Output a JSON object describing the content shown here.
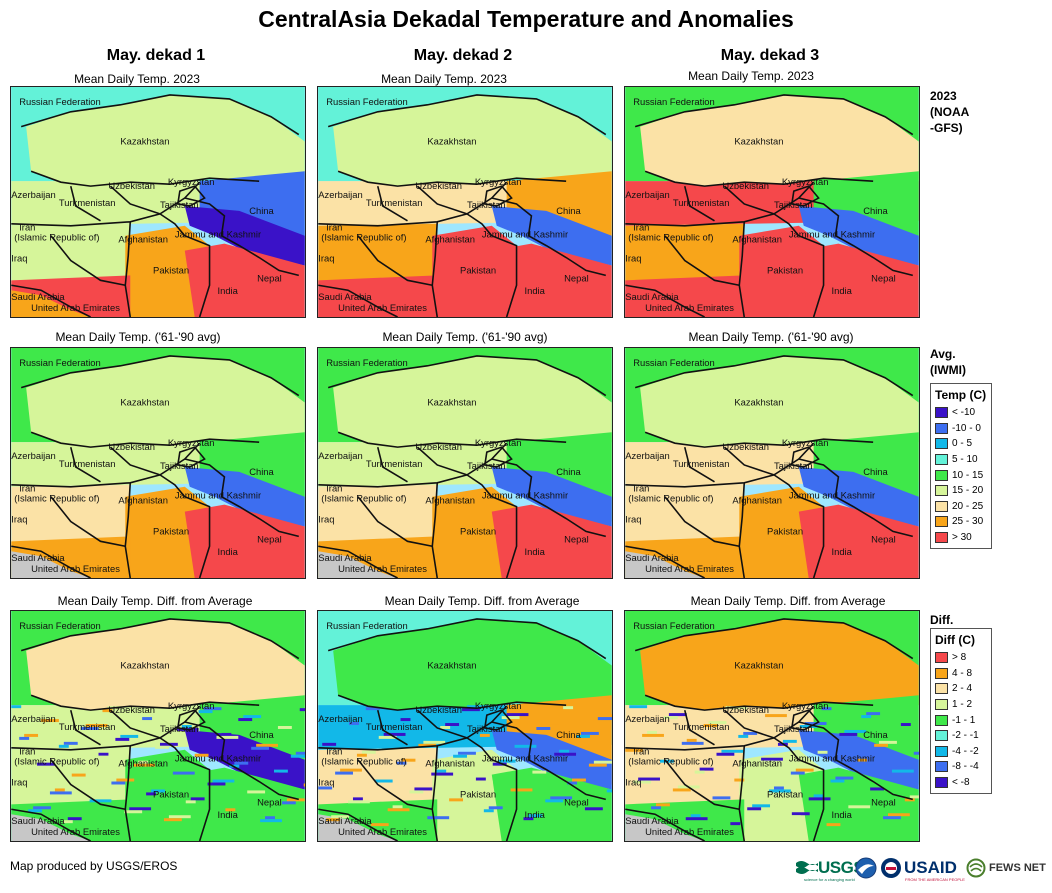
{
  "title": "CentralAsia Dekadal Temperature and Anomalies",
  "columns": [
    "May. dekad 1",
    "May. dekad 2",
    "May. dekad 3"
  ],
  "rows": [
    {
      "subtitle": "Mean Daily Temp. 2023",
      "label": "2023\n(NOAA\n-GFS)",
      "legend": null
    },
    {
      "subtitle": "Mean Daily Temp. ('61-'90 avg)",
      "label": "Avg.\n(IWMI)",
      "legend": {
        "title": "Temp (C)",
        "items": [
          {
            "label": "< -10",
            "color": "#3a12c8"
          },
          {
            "label": "-10 - 0",
            "color": "#3d6ef0"
          },
          {
            "label": "0 - 5",
            "color": "#12b8e8"
          },
          {
            "label": "5 - 10",
            "color": "#63f2d8"
          },
          {
            "label": "10 - 15",
            "color": "#3fe84a"
          },
          {
            "label": "15 - 20",
            "color": "#d6f59a"
          },
          {
            "label": "20 - 25",
            "color": "#fbe2a6"
          },
          {
            "label": "25 - 30",
            "color": "#f8a51a"
          },
          {
            "label": "> 30",
            "color": "#f5484b"
          }
        ]
      }
    },
    {
      "subtitle": "Mean Daily Temp. Diff. from Average",
      "label": "Diff.",
      "legend": {
        "title": "Diff (C)",
        "items": [
          {
            "label": "> 8",
            "color": "#f5484b"
          },
          {
            "label": "4 - 8",
            "color": "#f8a51a"
          },
          {
            "label": "2 - 4",
            "color": "#fbe2a6"
          },
          {
            "label": "1 - 2",
            "color": "#d6f59a"
          },
          {
            "label": "-1 - 1",
            "color": "#3fe84a"
          },
          {
            "label": "-2 - -1",
            "color": "#63f2d8"
          },
          {
            "label": "-4 - -2",
            "color": "#12b8e8"
          },
          {
            "label": "-8 - -4",
            "color": "#3d6ef0"
          },
          {
            "label": "< -8",
            "color": "#3a12c8"
          }
        ]
      }
    }
  ],
  "map_labels": {
    "russia": "Russian Federation",
    "kazakhstan": "Kazakhstan",
    "uzbekistan": "Uzbekistan",
    "kyrgyzstan": "Kyrgyzstan",
    "azerbaijan": "Azerbaijan",
    "turkmenistan": "Turkmenistan",
    "tajikistan": "Tajikistan",
    "china": "China",
    "iran": "Iran\n(Islamic Republic of)",
    "afghanistan": "Afghanistan",
    "jammu": "Jammu and Kashmir",
    "iraq": "Iraq",
    "pakistan": "Pakistan",
    "nepal": "Nepal",
    "india": "India",
    "saudi": "Saudi Arabia",
    "uae": "United Arab Emirates"
  },
  "credit": "Map produced by USGS/EROS",
  "logos": {
    "usgs": "USGS",
    "usgs_tagline": "science for a changing world",
    "usaid": "USAID",
    "usaid_tagline": "FROM THE AMERICAN PEOPLE",
    "fews": "FEWS NET"
  }
}
